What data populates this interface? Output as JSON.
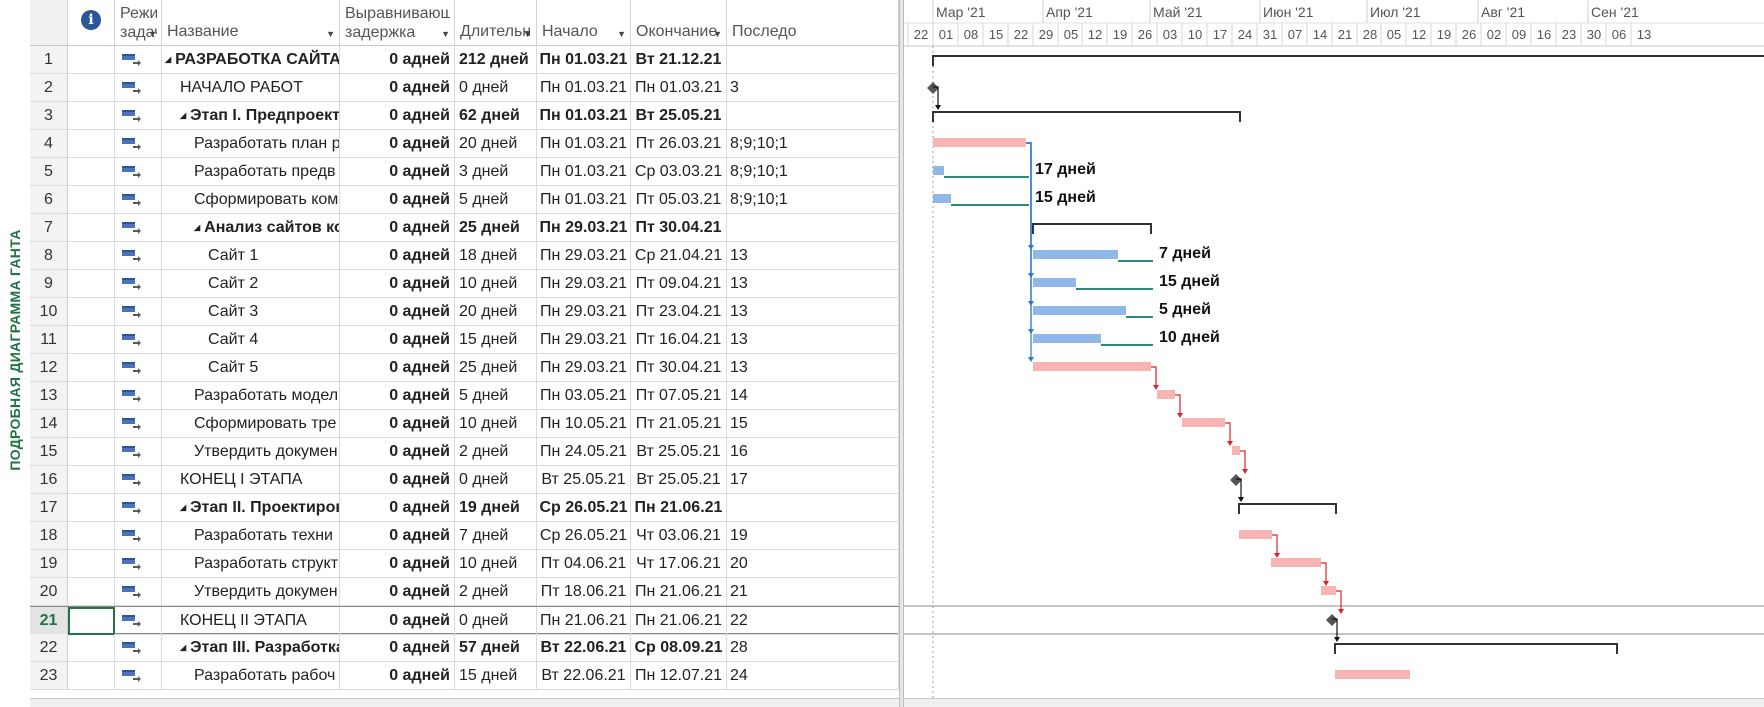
{
  "view_label": "ПОДРОБНАЯ ДИАГРАММА ГАНТА",
  "columns": [
    {
      "key": "indicators",
      "label": "ⓘ"
    },
    {
      "key": "mode",
      "label_line1": "Режим",
      "label_line2": "задачи"
    },
    {
      "key": "name",
      "label": "Название"
    },
    {
      "key": "delay",
      "label_line1": "Выравнивающ",
      "label_line2": "задержка"
    },
    {
      "key": "duration",
      "label": "Длительн"
    },
    {
      "key": "start",
      "label": "Начало"
    },
    {
      "key": "finish",
      "label": "Окончание"
    },
    {
      "key": "pred",
      "label": "Последо"
    }
  ],
  "months": [
    "Мар '21",
    "Апр '21",
    "Май '21",
    "Июн '21",
    "Июл '21",
    "Авг '21",
    "Сен '21"
  ],
  "days": [
    "22",
    "01",
    "08",
    "15",
    "22",
    "29",
    "05",
    "12",
    "19",
    "26",
    "03",
    "10",
    "17",
    "24",
    "31",
    "07",
    "14",
    "21",
    "28",
    "05",
    "12",
    "19",
    "26",
    "02",
    "09",
    "16",
    "23",
    "30",
    "06",
    "13"
  ],
  "selected_row": 21,
  "rows": [
    {
      "id": "1",
      "name": "РАЗРАБОТКА САЙТА",
      "level": 0,
      "summary": true,
      "delay": "0 адней",
      "duration": "212 дней",
      "start": "Пн 01.03.21",
      "finish": "Вт 21.12.21",
      "pred": ""
    },
    {
      "id": "2",
      "name": "НАЧАЛО РАБОТ",
      "level": 1,
      "summary": false,
      "delay": "0 адней",
      "duration": "0 дней",
      "start": "Пн 01.03.21",
      "finish": "Пн 01.03.21",
      "pred": "3"
    },
    {
      "id": "3",
      "name": "Этап I. Предпроектн",
      "level": 1,
      "summary": true,
      "delay": "0 адней",
      "duration": "62 дней",
      "start": "Пн 01.03.21",
      "finish": "Вт 25.05.21",
      "pred": ""
    },
    {
      "id": "4",
      "name": "Разработать план р",
      "level": 2,
      "summary": false,
      "delay": "0 адней",
      "duration": "20 дней",
      "start": "Пн 01.03.21",
      "finish": "Пт 26.03.21",
      "pred": "8;9;10;1"
    },
    {
      "id": "5",
      "name": "Разработать предв",
      "level": 2,
      "summary": false,
      "delay": "0 адней",
      "duration": "3 дней",
      "start": "Пн 01.03.21",
      "finish": "Ср 03.03.21",
      "pred": "8;9;10;1"
    },
    {
      "id": "6",
      "name": "Сформировать ком",
      "level": 2,
      "summary": false,
      "delay": "0 адней",
      "duration": "5 дней",
      "start": "Пн 01.03.21",
      "finish": "Пт 05.03.21",
      "pred": "8;9;10;1"
    },
    {
      "id": "7",
      "name": "Анализ сайтов кон",
      "level": 2,
      "summary": true,
      "delay": "0 адней",
      "duration": "25 дней",
      "start": "Пн 29.03.21",
      "finish": "Пт 30.04.21",
      "pred": ""
    },
    {
      "id": "8",
      "name": "Сайт 1",
      "level": 3,
      "summary": false,
      "delay": "0 адней",
      "duration": "18 дней",
      "start": "Пн 29.03.21",
      "finish": "Ср 21.04.21",
      "pred": "13"
    },
    {
      "id": "9",
      "name": "Сайт 2",
      "level": 3,
      "summary": false,
      "delay": "0 адней",
      "duration": "10 дней",
      "start": "Пн 29.03.21",
      "finish": "Пт 09.04.21",
      "pred": "13"
    },
    {
      "id": "10",
      "name": "Сайт 3",
      "level": 3,
      "summary": false,
      "delay": "0 адней",
      "duration": "20 дней",
      "start": "Пн 29.03.21",
      "finish": "Пт 23.04.21",
      "pred": "13"
    },
    {
      "id": "11",
      "name": "Сайт 4",
      "level": 3,
      "summary": false,
      "delay": "0 адней",
      "duration": "15 дней",
      "start": "Пн 29.03.21",
      "finish": "Пт 16.04.21",
      "pred": "13"
    },
    {
      "id": "12",
      "name": "Сайт 5",
      "level": 3,
      "summary": false,
      "delay": "0 адней",
      "duration": "25 дней",
      "start": "Пн 29.03.21",
      "finish": "Пт 30.04.21",
      "pred": "13"
    },
    {
      "id": "13",
      "name": "Разработать модел",
      "level": 2,
      "summary": false,
      "delay": "0 адней",
      "duration": "5 дней",
      "start": "Пн 03.05.21",
      "finish": "Пт 07.05.21",
      "pred": "14"
    },
    {
      "id": "14",
      "name": "Сформировать тре",
      "level": 2,
      "summary": false,
      "delay": "0 адней",
      "duration": "10 дней",
      "start": "Пн 10.05.21",
      "finish": "Пт 21.05.21",
      "pred": "15"
    },
    {
      "id": "15",
      "name": "Утвердить докумен",
      "level": 2,
      "summary": false,
      "delay": "0 адней",
      "duration": "2 дней",
      "start": "Пн 24.05.21",
      "finish": "Вт 25.05.21",
      "pred": "16"
    },
    {
      "id": "16",
      "name": "КОНЕЦ I ЭТАПА",
      "level": 1,
      "summary": false,
      "delay": "0 адней",
      "duration": "0 дней",
      "start": "Вт 25.05.21",
      "finish": "Вт 25.05.21",
      "pred": "17"
    },
    {
      "id": "17",
      "name": "Этап II. Проектирова",
      "level": 1,
      "summary": true,
      "delay": "0 адней",
      "duration": "19 дней",
      "start": "Ср 26.05.21",
      "finish": "Пн 21.06.21",
      "pred": ""
    },
    {
      "id": "18",
      "name": "Разработать техни",
      "level": 2,
      "summary": false,
      "delay": "0 адней",
      "duration": "7 дней",
      "start": "Ср 26.05.21",
      "finish": "Чт 03.06.21",
      "pred": "19"
    },
    {
      "id": "19",
      "name": "Разработать структ",
      "level": 2,
      "summary": false,
      "delay": "0 адней",
      "duration": "10 дней",
      "start": "Пт 04.06.21",
      "finish": "Чт 17.06.21",
      "pred": "20"
    },
    {
      "id": "20",
      "name": "Утвердить докумен",
      "level": 2,
      "summary": false,
      "delay": "0 адней",
      "duration": "2 дней",
      "start": "Пт 18.06.21",
      "finish": "Пн 21.06.21",
      "pred": "21"
    },
    {
      "id": "21",
      "name": "КОНЕЦ II ЭТАПА",
      "level": 1,
      "summary": false,
      "delay": "0 адней",
      "duration": "0 дней",
      "start": "Пн 21.06.21",
      "finish": "Пн 21.06.21",
      "pred": "22"
    },
    {
      "id": "22",
      "name": "Этап III. Разработка",
      "level": 1,
      "summary": true,
      "delay": "0 адней",
      "duration": "57 дней",
      "start": "Вт 22.06.21",
      "finish": "Ср 08.09.21",
      "pred": "28"
    },
    {
      "id": "23",
      "name": "Разработать рабоч",
      "level": 2,
      "summary": false,
      "delay": "0 адней",
      "duration": "15 дней",
      "start": "Вт 22.06.21",
      "finish": "Пн 12.07.21",
      "pred": "24"
    }
  ],
  "slack_labels": {
    "5": "17 дней",
    "6": "15 дней",
    "8": "7 дней",
    "9": "15 дней",
    "10": "5 дней",
    "11": "10 дней"
  },
  "colors": {
    "critical": "#f8b3b3",
    "noncritical": "#8fb8e8",
    "summary": "#333333",
    "critical_link": "#d9262c",
    "noncritical_link": "#2a77d4",
    "slack": "#2c8a7a",
    "accent": "#217346"
  }
}
